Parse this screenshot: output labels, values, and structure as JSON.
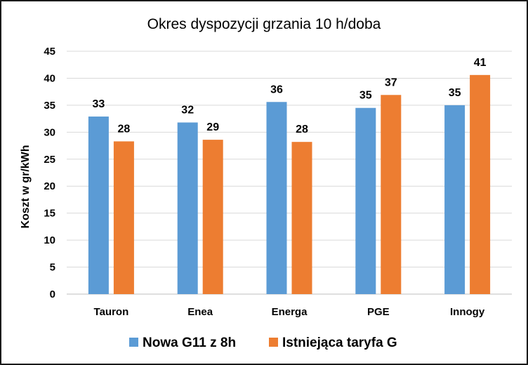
{
  "chart_data": {
    "type": "bar",
    "title": "Okres dyspozycji grzania 10 h/doba",
    "xlabel": "",
    "ylabel": "Koszt w gr/kWh",
    "ylim": [
      0,
      45
    ],
    "yticks": [
      0,
      5,
      10,
      15,
      20,
      25,
      30,
      35,
      40,
      45
    ],
    "grid": true,
    "legend_position": "bottom",
    "categories": [
      "Tauron",
      "Enea",
      "Energa",
      "PGE",
      "Innogy"
    ],
    "series": [
      {
        "name": "Nowa G11 z 8h",
        "color": "#5b9bd5",
        "values": [
          32.9,
          31.8,
          35.6,
          34.5,
          35.0
        ],
        "labels": [
          "33",
          "32",
          "36",
          "35",
          "35"
        ]
      },
      {
        "name": "Istniejąca taryfa G",
        "color": "#ed7d31",
        "values": [
          28.3,
          28.6,
          28.2,
          36.9,
          40.6
        ],
        "labels": [
          "28",
          "29",
          "28",
          "37",
          "41"
        ]
      }
    ]
  }
}
